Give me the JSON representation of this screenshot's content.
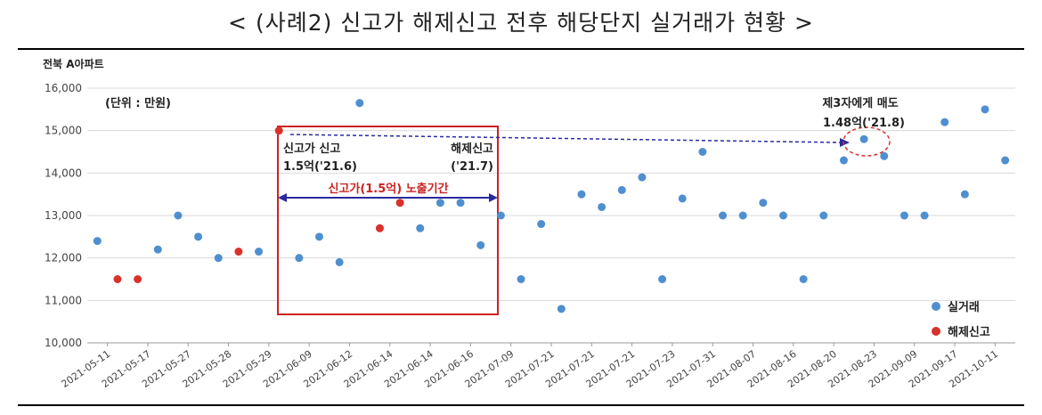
{
  "heading": "< (사례2) 신고가 해제신고 전후 해당단지 실거래가 현황 >",
  "chart_data": {
    "type": "scatter",
    "title": "전북 A아파트",
    "unit_note": "(단위 : 만원)",
    "ylim": [
      10000,
      16000
    ],
    "yticks": [
      10000,
      11000,
      12000,
      13000,
      14000,
      15000,
      16000
    ],
    "ytick_labels": [
      "10,000",
      "11,000",
      "12,000",
      "13,000",
      "14,000",
      "15,000",
      "16,000"
    ],
    "categories": [
      "2021-05-11",
      "2021-05-17",
      "2021-05-27",
      "2021-05-28",
      "2021-05-29",
      "2021-06-09",
      "2021-06-12",
      "2021-06-14",
      "2021-06-14",
      "2021-06-16",
      "2021-07-09",
      "2021-07-21",
      "2021-07-21",
      "2021-07-21",
      "2021-07-23",
      "2021-07-31",
      "2021-08-07",
      "2021-08-16",
      "2021-08-20",
      "2021-08-23",
      "2021-09-09",
      "2021-09-17",
      "2021-10-11"
    ],
    "grid": true,
    "legend_position": "bottom-right",
    "series": [
      {
        "name": "실거래",
        "color": "#4f8fd0",
        "points": [
          {
            "x": 0,
            "y": 12400
          },
          {
            "x": 3,
            "y": 12200
          },
          {
            "x": 4,
            "y": 13000
          },
          {
            "x": 5,
            "y": 12500
          },
          {
            "x": 6,
            "y": 12000
          },
          {
            "x": 8,
            "y": 12150
          },
          {
            "x": 10,
            "y": 12000
          },
          {
            "x": 11,
            "y": 12500
          },
          {
            "x": 12,
            "y": 11900
          },
          {
            "x": 13,
            "y": 15650
          },
          {
            "x": 16,
            "y": 12700
          },
          {
            "x": 17,
            "y": 13300
          },
          {
            "x": 18,
            "y": 13300
          },
          {
            "x": 19,
            "y": 12300
          },
          {
            "x": 20,
            "y": 13000
          },
          {
            "x": 21,
            "y": 11500
          },
          {
            "x": 22,
            "y": 12800
          },
          {
            "x": 23,
            "y": 10800
          },
          {
            "x": 24,
            "y": 13500
          },
          {
            "x": 25,
            "y": 13200
          },
          {
            "x": 26,
            "y": 13600
          },
          {
            "x": 27,
            "y": 13900
          },
          {
            "x": 28,
            "y": 11500
          },
          {
            "x": 29,
            "y": 13400
          },
          {
            "x": 30,
            "y": 14500
          },
          {
            "x": 31,
            "y": 13000
          },
          {
            "x": 32,
            "y": 13000
          },
          {
            "x": 33,
            "y": 13300
          },
          {
            "x": 34,
            "y": 13000
          },
          {
            "x": 35,
            "y": 11500
          },
          {
            "x": 36,
            "y": 13000
          },
          {
            "x": 37,
            "y": 14300
          },
          {
            "x": 38,
            "y": 14800
          },
          {
            "x": 39,
            "y": 14400
          },
          {
            "x": 40,
            "y": 13000
          },
          {
            "x": 41,
            "y": 13000
          },
          {
            "x": 42,
            "y": 15200
          },
          {
            "x": 43,
            "y": 13500
          },
          {
            "x": 44,
            "y": 15500
          },
          {
            "x": 45,
            "y": 14300
          }
        ]
      },
      {
        "name": "해제신고",
        "color": "#d9312b",
        "points": [
          {
            "x": 1,
            "y": 11500
          },
          {
            "x": 2,
            "y": 11500
          },
          {
            "x": 7,
            "y": 12150
          },
          {
            "x": 9,
            "y": 15000
          },
          {
            "x": 14,
            "y": 12700
          },
          {
            "x": 15,
            "y": 13300
          }
        ]
      }
    ],
    "annotations": {
      "report": [
        "신고가 신고",
        "1.5억('21.6)"
      ],
      "cancel": [
        "해제신고",
        "('21.7)"
      ],
      "exposure": "신고가(1.5억) 노출기간",
      "resale": [
        "제3자에게 매도",
        "1.48억('21.8)"
      ]
    }
  }
}
